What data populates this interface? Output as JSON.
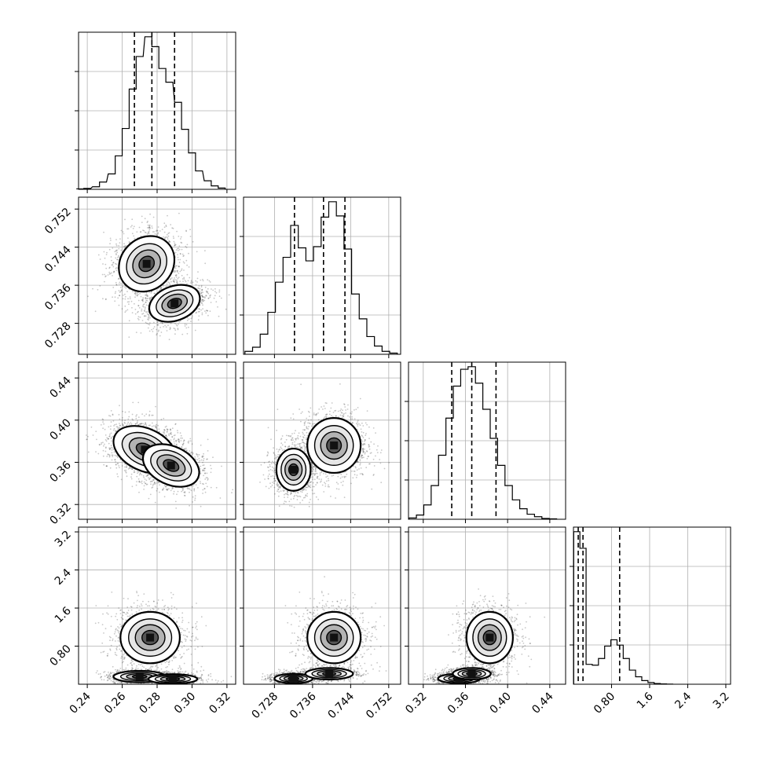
{
  "chart_data": [
    {
      "panel": "hist-param-1",
      "type": "histogram",
      "xlim": [
        0.235,
        0.325
      ],
      "x_ticks": [
        0.24,
        0.26,
        0.28,
        0.3,
        0.32
      ],
      "quantiles": [
        0.267,
        0.277,
        0.29
      ],
      "bins": [
        [
          0.236,
          0.001
        ],
        [
          0.24,
          0.002
        ],
        [
          0.245,
          0.006
        ],
        [
          0.249,
          0.017
        ],
        [
          0.254,
          0.036
        ],
        [
          0.258,
          0.078
        ],
        [
          0.262,
          0.142
        ],
        [
          0.266,
          0.234
        ],
        [
          0.27,
          0.31
        ],
        [
          0.275,
          0.356
        ],
        [
          0.279,
          0.333
        ],
        [
          0.283,
          0.282
        ],
        [
          0.287,
          0.25
        ],
        [
          0.292,
          0.203
        ],
        [
          0.296,
          0.14
        ],
        [
          0.3,
          0.085
        ],
        [
          0.304,
          0.043
        ],
        [
          0.309,
          0.02
        ],
        [
          0.313,
          0.008
        ],
        [
          0.317,
          0.003
        ]
      ]
    },
    {
      "panel": "hist-param-2",
      "type": "histogram",
      "xlim": [
        0.7215,
        0.7545
      ],
      "x_ticks": [
        0.728,
        0.736,
        0.744,
        0.752
      ],
      "quantiles": [
        0.7322,
        0.7383,
        0.7428
      ],
      "bins": [
        [
          0.7226,
          0.005
        ],
        [
          0.7242,
          0.012
        ],
        [
          0.7258,
          0.034
        ],
        [
          0.7274,
          0.071
        ],
        [
          0.729,
          0.122
        ],
        [
          0.7306,
          0.164
        ],
        [
          0.7322,
          0.218
        ],
        [
          0.7338,
          0.18
        ],
        [
          0.7354,
          0.158
        ],
        [
          0.737,
          0.182
        ],
        [
          0.7386,
          0.232
        ],
        [
          0.7402,
          0.258
        ],
        [
          0.7418,
          0.234
        ],
        [
          0.7434,
          0.178
        ],
        [
          0.745,
          0.102
        ],
        [
          0.7466,
          0.06
        ],
        [
          0.7482,
          0.03
        ],
        [
          0.7498,
          0.014
        ],
        [
          0.7514,
          0.005
        ],
        [
          0.753,
          0.002
        ]
      ]
    },
    {
      "panel": "hist-param-3",
      "type": "histogram",
      "xlim": [
        0.306,
        0.455
      ],
      "x_ticks": [
        0.32,
        0.36,
        0.4,
        0.44
      ],
      "quantiles": [
        0.347,
        0.366,
        0.389
      ],
      "bins": [
        [
          0.31,
          0.003
        ],
        [
          0.317,
          0.01
        ],
        [
          0.324,
          0.034
        ],
        [
          0.331,
          0.08
        ],
        [
          0.338,
          0.152
        ],
        [
          0.345,
          0.24
        ],
        [
          0.352,
          0.316
        ],
        [
          0.359,
          0.356
        ],
        [
          0.366,
          0.362
        ],
        [
          0.373,
          0.323
        ],
        [
          0.38,
          0.261
        ],
        [
          0.387,
          0.192
        ],
        [
          0.394,
          0.128
        ],
        [
          0.401,
          0.08
        ],
        [
          0.408,
          0.046
        ],
        [
          0.415,
          0.025
        ],
        [
          0.422,
          0.012
        ],
        [
          0.429,
          0.006
        ],
        [
          0.436,
          0.002
        ],
        [
          0.443,
          0.001
        ]
      ]
    },
    {
      "panel": "hist-param-4",
      "type": "histogram",
      "xlim": [
        0.0,
        3.3
      ],
      "x_ticks": [
        0.8,
        1.6,
        2.4,
        3.2
      ],
      "quantiles": [
        0.1,
        0.2,
        0.97
      ],
      "bins": [
        [
          0.07,
          0.92
        ],
        [
          0.2,
          0.82
        ],
        [
          0.33,
          0.12
        ],
        [
          0.46,
          0.115
        ],
        [
          0.59,
          0.155
        ],
        [
          0.72,
          0.23
        ],
        [
          0.85,
          0.268
        ],
        [
          0.98,
          0.236
        ],
        [
          1.11,
          0.155
        ],
        [
          1.24,
          0.085
        ],
        [
          1.37,
          0.045
        ],
        [
          1.5,
          0.022
        ],
        [
          1.63,
          0.01
        ],
        [
          1.76,
          0.004
        ],
        [
          1.89,
          0.002
        ],
        [
          2.02,
          0.001
        ]
      ]
    },
    {
      "panel": "joint-2-vs-1",
      "type": "scatter-density",
      "xlim": [
        0.235,
        0.325
      ],
      "ylim": [
        0.7215,
        0.7545
      ],
      "y_ticks": [
        0.728,
        0.736,
        0.744,
        0.752
      ],
      "modes": [
        {
          "x": 0.274,
          "y": 0.7405,
          "sx": 0.0085,
          "sy": 0.0027,
          "rot": 45,
          "weight": 0.55
        },
        {
          "x": 0.29,
          "y": 0.7322,
          "sx": 0.0075,
          "sy": 0.0018,
          "rot": 20,
          "weight": 0.45
        }
      ]
    },
    {
      "panel": "joint-3-vs-1",
      "type": "scatter-density",
      "xlim": [
        0.235,
        0.325
      ],
      "ylim": [
        0.306,
        0.455
      ],
      "y_ticks": [
        0.32,
        0.36,
        0.4,
        0.44
      ],
      "modes": [
        {
          "x": 0.273,
          "y": 0.372,
          "sx": 0.0095,
          "sy": 0.01,
          "rot": -25,
          "weight": 0.6
        },
        {
          "x": 0.288,
          "y": 0.357,
          "sx": 0.0085,
          "sy": 0.009,
          "rot": -25,
          "weight": 0.4
        }
      ]
    },
    {
      "panel": "joint-3-vs-2",
      "type": "scatter-density",
      "xlim": [
        0.7215,
        0.7545
      ],
      "ylim": [
        0.306,
        0.455
      ],
      "modes": [
        {
          "x": 0.732,
          "y": 0.353,
          "sx": 0.0018,
          "sy": 0.01,
          "rot": 0,
          "weight": 0.45
        },
        {
          "x": 0.7405,
          "y": 0.376,
          "sx": 0.0028,
          "sy": 0.013,
          "rot": 0,
          "weight": 0.55
        }
      ]
    },
    {
      "panel": "joint-4-vs-1",
      "type": "scatter-density",
      "xlim": [
        0.235,
        0.325
      ],
      "ylim": [
        0.0,
        3.3
      ],
      "y_ticks": [
        0.8,
        1.6,
        2.4,
        3.2
      ],
      "modes": [
        {
          "x": 0.276,
          "y": 0.98,
          "sx": 0.0085,
          "sy": 0.27,
          "rot": 0,
          "weight": 0.42
        },
        {
          "x": 0.27,
          "y": 0.16,
          "sx": 0.0075,
          "sy": 0.06,
          "rot": 0,
          "weight": 0.3
        },
        {
          "x": 0.289,
          "y": 0.11,
          "sx": 0.007,
          "sy": 0.05,
          "rot": 0,
          "weight": 0.28
        }
      ]
    },
    {
      "panel": "joint-4-vs-2",
      "type": "scatter-density",
      "xlim": [
        0.7215,
        0.7545
      ],
      "ylim": [
        0.0,
        3.3
      ],
      "modes": [
        {
          "x": 0.7405,
          "y": 0.98,
          "sx": 0.0028,
          "sy": 0.27,
          "rot": 0,
          "weight": 0.42
        },
        {
          "x": 0.732,
          "y": 0.12,
          "sx": 0.002,
          "sy": 0.05,
          "rot": 0,
          "weight": 0.33
        },
        {
          "x": 0.7395,
          "y": 0.22,
          "sx": 0.0025,
          "sy": 0.06,
          "rot": 0,
          "weight": 0.25
        }
      ]
    },
    {
      "panel": "joint-4-vs-3",
      "type": "scatter-density",
      "xlim": [
        0.306,
        0.455
      ],
      "ylim": [
        0.0,
        3.3
      ],
      "modes": [
        {
          "x": 0.383,
          "y": 0.98,
          "sx": 0.011,
          "sy": 0.27,
          "rot": 0,
          "weight": 0.42
        },
        {
          "x": 0.354,
          "y": 0.12,
          "sx": 0.01,
          "sy": 0.05,
          "rot": 0,
          "weight": 0.33
        },
        {
          "x": 0.366,
          "y": 0.22,
          "sx": 0.009,
          "sy": 0.06,
          "rot": 0,
          "weight": 0.25
        }
      ]
    }
  ]
}
